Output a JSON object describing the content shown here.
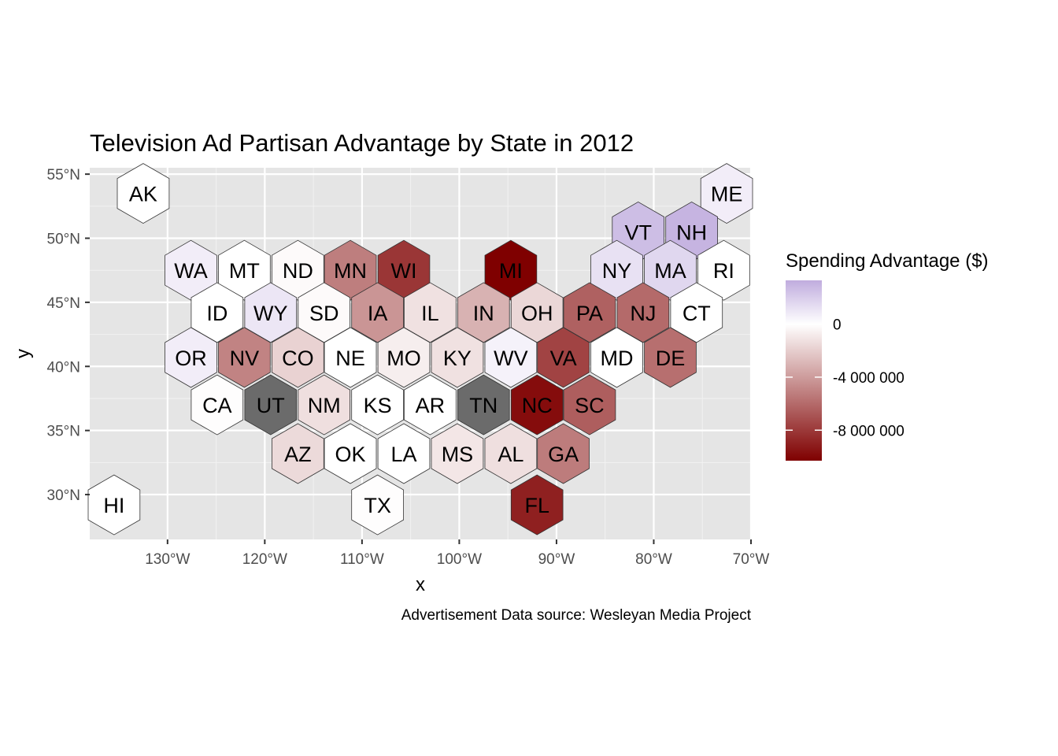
{
  "chart_data": {
    "type": "heatmap",
    "title": "Television Ad Partisan Advantage by State in 2012",
    "xlabel": "x",
    "ylabel": "y",
    "caption": "Advertisement Data source: Wesleyan Media Project",
    "x_ticks": [
      "130°W",
      "120°W",
      "110°W",
      "100°W",
      "90°W",
      "80°W",
      "70°W"
    ],
    "y_ticks": [
      "30°N",
      "35°N",
      "40°N",
      "45°N",
      "50°N",
      "55°N"
    ],
    "xlim": [
      -138,
      -70
    ],
    "ylim": [
      26.5,
      55.5
    ],
    "legend": {
      "title": "Spending Advantage ($)",
      "labels": [
        "0",
        "-4 000 000",
        "-8 000 000"
      ],
      "label_values": [
        0,
        -4000000,
        -8000000
      ],
      "range": [
        -10300000,
        3300000
      ],
      "colors": {
        "low": "#7f0000",
        "mid": "#ffffff",
        "high": "#c0acde"
      },
      "na_color": "#6b6b6b",
      "position": "right"
    },
    "states": [
      {
        "abbr": "AK",
        "value": null,
        "no_fill": true,
        "lon": -132.5,
        "lat": 53.5
      },
      {
        "abbr": "HI",
        "value": null,
        "no_fill": true,
        "lon": -135.5,
        "lat": 29.2
      },
      {
        "abbr": "ME",
        "value": 700000,
        "lon": -72.5,
        "lat": 53.5
      },
      {
        "abbr": "VT",
        "value": 2600000,
        "lon": -81.6,
        "lat": 50.5
      },
      {
        "abbr": "NH",
        "value": 3000000,
        "lon": -76.1,
        "lat": 50.5
      },
      {
        "abbr": "WA",
        "value": 700000,
        "lon": -127.6,
        "lat": 47.5
      },
      {
        "abbr": "MT",
        "value": 0,
        "lon": -122.1,
        "lat": 47.5
      },
      {
        "abbr": "ND",
        "value": -200000,
        "lon": -116.6,
        "lat": 47.5
      },
      {
        "abbr": "MN",
        "value": -5200000,
        "lon": -111.2,
        "lat": 47.5
      },
      {
        "abbr": "WI",
        "value": -8100000,
        "lon": -105.7,
        "lat": 47.5
      },
      {
        "abbr": "MI",
        "value": -10300000,
        "lon": -94.7,
        "lat": 47.5
      },
      {
        "abbr": "NY",
        "value": 1200000,
        "lon": -83.8,
        "lat": 47.5
      },
      {
        "abbr": "MA",
        "value": 1600000,
        "lon": -78.3,
        "lat": 47.5
      },
      {
        "abbr": "RI",
        "value": 0,
        "lon": -72.8,
        "lat": 47.5
      },
      {
        "abbr": "ID",
        "value": 0,
        "lon": -124.9,
        "lat": 44.2
      },
      {
        "abbr": "WY",
        "value": 1000000,
        "lon": -119.4,
        "lat": 44.2
      },
      {
        "abbr": "SD",
        "value": -200000,
        "lon": -113.9,
        "lat": 44.2
      },
      {
        "abbr": "IA",
        "value": -4300000,
        "lon": -108.4,
        "lat": 44.2
      },
      {
        "abbr": "IL",
        "value": -1200000,
        "lon": -103.0,
        "lat": 44.2
      },
      {
        "abbr": "IN",
        "value": -3100000,
        "lon": -97.5,
        "lat": 44.2
      },
      {
        "abbr": "OH",
        "value": -1600000,
        "lon": -92.0,
        "lat": 44.2
      },
      {
        "abbr": "PA",
        "value": -6400000,
        "lon": -86.6,
        "lat": 44.2
      },
      {
        "abbr": "NJ",
        "value": -6000000,
        "lon": -81.1,
        "lat": 44.2
      },
      {
        "abbr": "CT",
        "value": 0,
        "lon": -75.6,
        "lat": 44.2
      },
      {
        "abbr": "OR",
        "value": 700000,
        "lon": -127.6,
        "lat": 40.7
      },
      {
        "abbr": "NV",
        "value": -5000000,
        "lon": -122.1,
        "lat": 40.7
      },
      {
        "abbr": "CO",
        "value": -1800000,
        "lon": -116.6,
        "lat": 40.7
      },
      {
        "abbr": "NE",
        "value": 0,
        "lon": -111.2,
        "lat": 40.7
      },
      {
        "abbr": "MO",
        "value": -700000,
        "lon": -105.7,
        "lat": 40.7
      },
      {
        "abbr": "KY",
        "value": -1200000,
        "lon": -100.2,
        "lat": 40.7
      },
      {
        "abbr": "WV",
        "value": 500000,
        "lon": -94.7,
        "lat": 40.7
      },
      {
        "abbr": "VA",
        "value": -7600000,
        "lon": -89.3,
        "lat": 40.7
      },
      {
        "abbr": "MD",
        "value": 0,
        "lon": -83.8,
        "lat": 40.7
      },
      {
        "abbr": "DE",
        "value": -5800000,
        "lon": -78.3,
        "lat": 40.7
      },
      {
        "abbr": "CA",
        "value": -100000,
        "lon": -124.9,
        "lat": 37.0
      },
      {
        "abbr": "UT",
        "value": null,
        "lon": -119.4,
        "lat": 37.0
      },
      {
        "abbr": "NM",
        "value": -1300000,
        "lon": -113.9,
        "lat": 37.0
      },
      {
        "abbr": "KS",
        "value": 0,
        "lon": -108.4,
        "lat": 37.0
      },
      {
        "abbr": "AR",
        "value": 0,
        "lon": -103.0,
        "lat": 37.0
      },
      {
        "abbr": "TN",
        "value": null,
        "lon": -97.5,
        "lat": 37.0
      },
      {
        "abbr": "NC",
        "value": -9800000,
        "lon": -92.0,
        "lat": 37.0
      },
      {
        "abbr": "SC",
        "value": -6500000,
        "lon": -86.6,
        "lat": 37.0
      },
      {
        "abbr": "AZ",
        "value": -1500000,
        "lon": -116.6,
        "lat": 33.2
      },
      {
        "abbr": "OK",
        "value": 0,
        "lon": -111.2,
        "lat": 33.2
      },
      {
        "abbr": "LA",
        "value": 0,
        "lon": -105.7,
        "lat": 33.2
      },
      {
        "abbr": "MS",
        "value": -1000000,
        "lon": -100.2,
        "lat": 33.2
      },
      {
        "abbr": "AL",
        "value": -1300000,
        "lon": -94.7,
        "lat": 33.2
      },
      {
        "abbr": "GA",
        "value": -5300000,
        "lon": -89.3,
        "lat": 33.2
      },
      {
        "abbr": "TX",
        "value": -100000,
        "lon": -108.4,
        "lat": 29.2
      },
      {
        "abbr": "FL",
        "value": -9000000,
        "lon": -92.0,
        "lat": 29.2
      }
    ]
  }
}
